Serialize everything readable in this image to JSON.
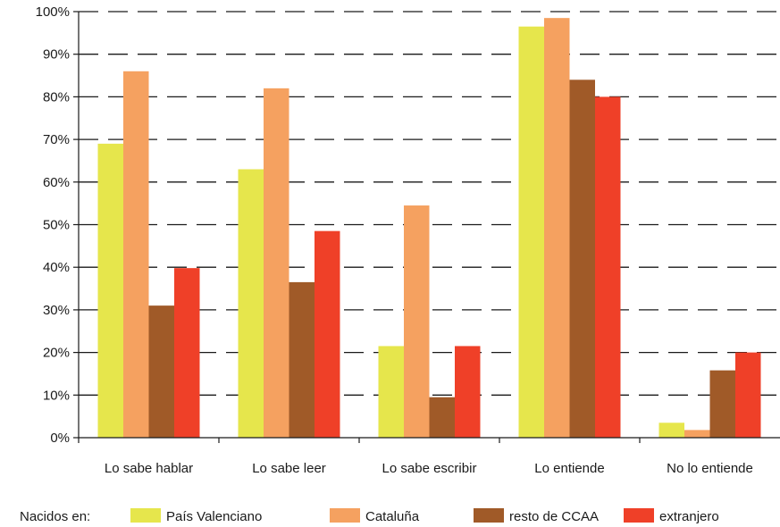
{
  "chart_data": {
    "type": "bar",
    "categories": [
      "Lo sabe hablar",
      "Lo sabe leer",
      "Lo sabe escribir",
      "Lo entiende",
      "No lo entiende"
    ],
    "y_ticks": [
      "0%",
      "10%",
      "20%",
      "30%",
      "40%",
      "50%",
      "60%",
      "70%",
      "80%",
      "90%",
      "100%"
    ],
    "ylim": [
      0,
      100
    ],
    "grid": "horizontal dashed",
    "legend_position": "bottom",
    "legend_title": "Nacidos en:",
    "series": [
      {
        "name": "País Valenciano",
        "color": "#e6e64c",
        "values": [
          69,
          63,
          21.5,
          96.5,
          3.5
        ]
      },
      {
        "name": "Cataluña",
        "color": "#f5a160",
        "values": [
          86,
          82,
          54.5,
          98.5,
          1.8
        ]
      },
      {
        "name": "resto de CCAA",
        "color": "#a05a28",
        "values": [
          31,
          36.5,
          9.5,
          84,
          15.8
        ]
      },
      {
        "name": "extranjero",
        "color": "#ef4028",
        "values": [
          39.8,
          48.5,
          21.5,
          80,
          20
        ]
      }
    ]
  }
}
